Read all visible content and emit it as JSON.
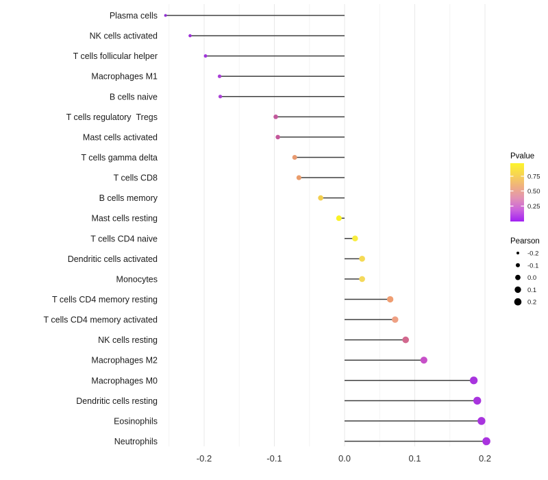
{
  "chart_data": {
    "type": "lollipop",
    "title": "",
    "xlabel": "",
    "ylabel": "",
    "grid": true,
    "axis_range": [
      -0.26,
      0.225
    ],
    "x_major_ticks": [
      -0.2,
      -0.1,
      0.0,
      0.1,
      0.2
    ],
    "x_tick_labels": [
      "-0.2",
      "-0.1",
      "0.0",
      "0.1",
      "0.2"
    ],
    "x_minor_ticks": [
      -0.25,
      -0.15,
      -0.05,
      0.05,
      0.15
    ],
    "points": [
      {
        "label": "Plasma cells",
        "pearson": -0.255,
        "color": "#9130D3"
      },
      {
        "label": "NK cells activated",
        "pearson": -0.22,
        "color": "#9C2FD6"
      },
      {
        "label": "T cells follicular helper",
        "pearson": -0.198,
        "color": "#A136DB"
      },
      {
        "label": "Macrophages M1",
        "pearson": -0.178,
        "color": "#A93FD6"
      },
      {
        "label": "B cells naive",
        "pearson": -0.177,
        "color": "#AA41D5"
      },
      {
        "label": "T cells regulatory  Tregs",
        "pearson": -0.098,
        "color": "#C2599D"
      },
      {
        "label": "Mast cells activated",
        "pearson": -0.095,
        "color": "#C4589B"
      },
      {
        "label": "T cells gamma delta",
        "pearson": -0.071,
        "color": "#E89A70"
      },
      {
        "label": "T cells CD8",
        "pearson": -0.065,
        "color": "#EA9C6B"
      },
      {
        "label": "B cells memory",
        "pearson": -0.034,
        "color": "#F2CE4E"
      },
      {
        "label": "Mast cells resting",
        "pearson": -0.008,
        "color": "#FAF226"
      },
      {
        "label": "T cells CD4 naive",
        "pearson": 0.015,
        "color": "#F8EC3E"
      },
      {
        "label": "Dendritic cells activated",
        "pearson": 0.025,
        "color": "#F5DA55"
      },
      {
        "label": "Monocytes",
        "pearson": 0.025,
        "color": "#F4D95C"
      },
      {
        "label": "T cells CD4 memory resting",
        "pearson": 0.065,
        "color": "#EF9E72"
      },
      {
        "label": "T cells CD4 memory activated",
        "pearson": 0.072,
        "color": "#EEA083"
      },
      {
        "label": "NK cells resting",
        "pearson": 0.087,
        "color": "#D2688E"
      },
      {
        "label": "Macrophages M2",
        "pearson": 0.113,
        "color": "#C750C8"
      },
      {
        "label": "Macrophages M0",
        "pearson": 0.184,
        "color": "#A834DE"
      },
      {
        "label": "Dendritic cells resting",
        "pearson": 0.189,
        "color": "#A834DE"
      },
      {
        "label": "Eosinophils",
        "pearson": 0.195,
        "color": "#A834DE"
      },
      {
        "label": "Neutrophils",
        "pearson": 0.202,
        "color": "#A933DF"
      }
    ],
    "legend_pvalue": {
      "title": "Pvalue",
      "tick_labels": [
        "0.75",
        "0.50",
        "0.25"
      ],
      "gradient_top_to_bottom": [
        "#FDF42B",
        "#F7D453",
        "#EFB080",
        "#E292B4",
        "#CB63DC",
        "#A121F2"
      ]
    },
    "legend_pearson": {
      "title": "Pearson",
      "entries": [
        "-0.2",
        "-0.1",
        "0.0",
        "0.1",
        "0.2"
      ],
      "dot_color": "#000000"
    },
    "style": {
      "stem_color": "#3F3F3F",
      "major_grid_color": "#E8E8E8",
      "minor_grid_color": "#F4F4F4",
      "tick_label_color": "#333333",
      "category_label_color": "#1A1A1A"
    }
  }
}
